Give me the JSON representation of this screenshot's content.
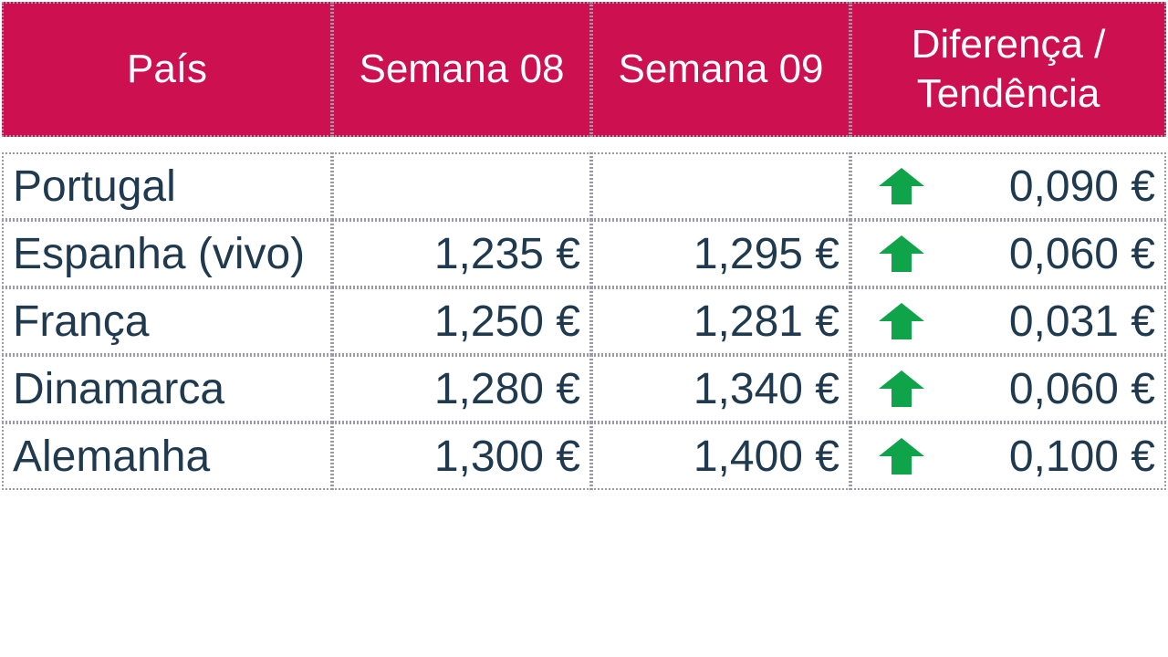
{
  "header": {
    "col1": "País",
    "col2": "Semana 08",
    "col3": "Semana 09",
    "col4_line1": "Diferença /",
    "col4_line2": "Tendência"
  },
  "colors": {
    "header_bg": "#cc1050",
    "header_text": "#ffffff",
    "body_text": "#1f3a4f",
    "trend_up": "#0fa34a"
  },
  "rows": [
    {
      "country": "Portugal",
      "week08": "",
      "week09": "",
      "trend": "up-arrow-icon",
      "difference": "0,090 €"
    },
    {
      "country": "Espanha (vivo)",
      "week08": "1,235 €",
      "week09": "1,295 €",
      "trend": "up-arrow-icon",
      "difference": "0,060 €"
    },
    {
      "country": "França",
      "week08": "1,250 €",
      "week09": "1,281 €",
      "trend": "up-arrow-icon",
      "difference": "0,031 €"
    },
    {
      "country": "Dinamarca",
      "week08": "1,280 €",
      "week09": "1,340 €",
      "trend": "up-arrow-icon",
      "difference": "0,060 €"
    },
    {
      "country": "Alemanha",
      "week08": "1,300 €",
      "week09": "1,400 €",
      "trend": "up-arrow-icon",
      "difference": "0,100 €"
    }
  ]
}
